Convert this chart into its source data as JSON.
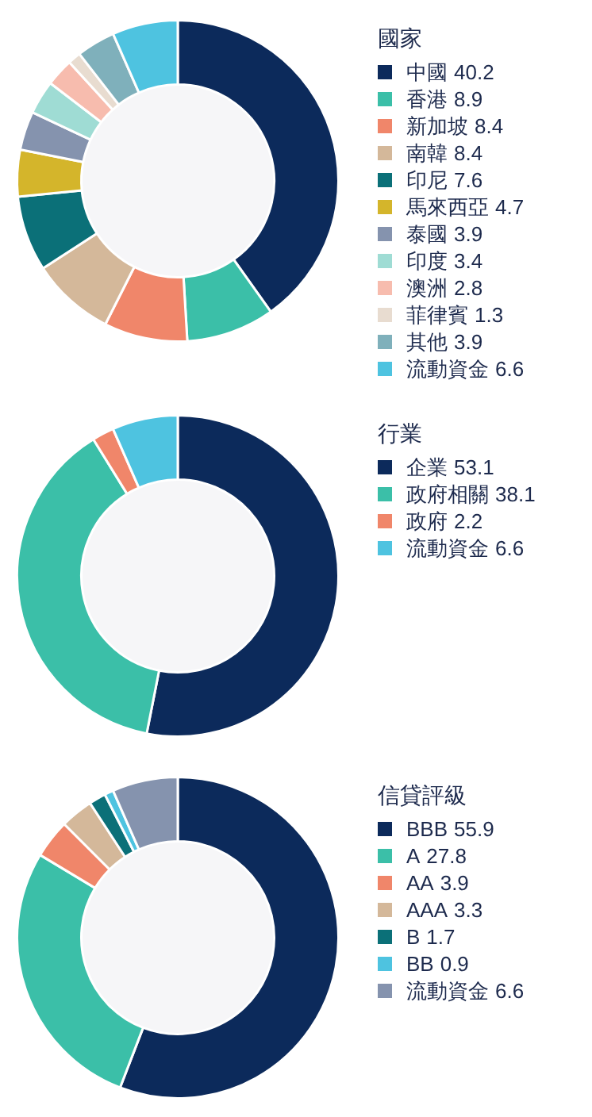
{
  "chart_data": [
    {
      "type": "donut",
      "legend_title": "國家",
      "legend": "right",
      "data_labels": true,
      "categories": [
        "中國",
        "香港",
        "新加坡",
        "南韓",
        "印尼",
        "馬來西亞",
        "泰國",
        "印度",
        "澳洲",
        "菲律賓",
        "其他",
        "流動資金"
      ],
      "values": [
        40.2,
        8.9,
        8.4,
        8.4,
        7.6,
        4.7,
        3.9,
        3.4,
        2.8,
        1.3,
        3.9,
        6.6
      ],
      "colors": [
        "#0c2a5b",
        "#3bbfa8",
        "#f0866a",
        "#d4b89a",
        "#0b7078",
        "#d4b52b",
        "#8593ae",
        "#9fdcd4",
        "#f7bcae",
        "#e8dcd0",
        "#7fb0bb",
        "#4ec3e0"
      ]
    },
    {
      "type": "donut",
      "legend_title": "行業",
      "legend": "right",
      "data_labels": true,
      "categories": [
        "企業",
        "政府相關",
        "政府",
        "流動資金"
      ],
      "values": [
        53.1,
        38.1,
        2.2,
        6.6
      ],
      "colors": [
        "#0c2a5b",
        "#3bbfa8",
        "#f0866a",
        "#4ec3e0"
      ]
    },
    {
      "type": "donut",
      "legend_title": "信貸評級",
      "legend": "right",
      "data_labels": true,
      "categories": [
        "BBB",
        "A",
        "AA",
        "AAA",
        "B",
        "BB",
        "流動資金"
      ],
      "values": [
        55.9,
        27.8,
        3.9,
        3.3,
        1.7,
        0.9,
        6.6
      ],
      "colors": [
        "#0c2a5b",
        "#3bbfa8",
        "#f0866a",
        "#d4b89a",
        "#0b7078",
        "#4ec3e0",
        "#8593ae"
      ]
    }
  ]
}
